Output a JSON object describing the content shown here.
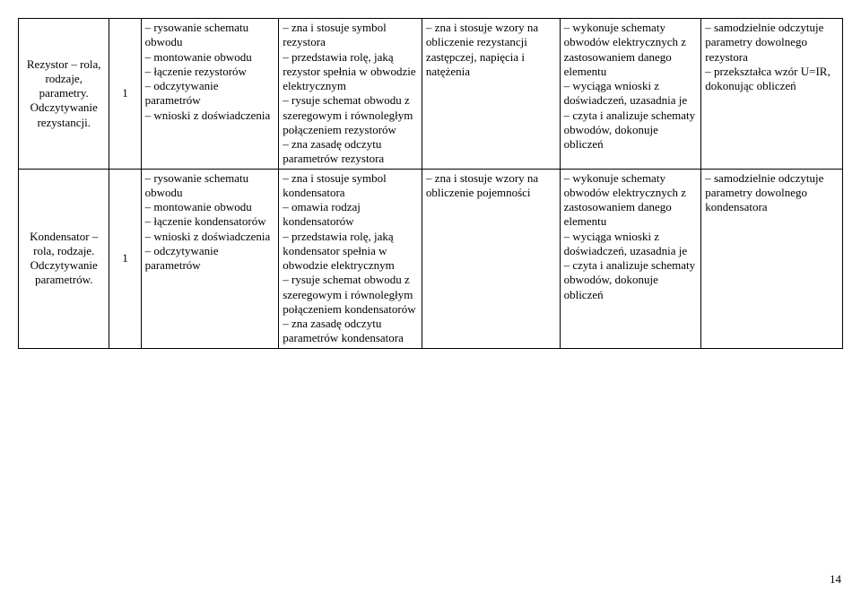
{
  "page_number": "14",
  "rows": [
    {
      "topic": "Rezystor – rola, rodzaje, parametry. Odczytywanie rezystancji.",
      "hours": "1",
      "c3": "– rysowanie schematu obwodu\n– montowanie obwodu\n– łączenie rezystorów\n– odczytywanie parametrów\n– wnioski z doświadczenia",
      "c4": "– zna i stosuje symbol rezystora\n– przedstawia rolę, jaką rezystor spełnia w obwodzie elektrycznym\n– rysuje schemat obwodu z szeregowym i równoległym połączeniem rezystorów\n– zna zasadę odczytu parametrów rezystora",
      "c5": "– zna i stosuje wzory na obliczenie rezystancji zastępczej, napięcia i natężenia",
      "c6": "– wykonuje schematy obwodów elektrycznych z zastosowaniem danego elementu\n– wyciąga wnioski z doświadczeń, uzasadnia je\n– czyta i analizuje schematy obwodów, dokonuje obliczeń",
      "c7": "– samodzielnie odczytuje parametry dowolnego rezystora\n– przekształca wzór U=IR, dokonując obliczeń"
    },
    {
      "topic": "Kondensator – rola, rodzaje. Odczytywanie parametrów.",
      "hours": "1",
      "c3": "– rysowanie schematu obwodu\n– montowanie obwodu\n– łączenie kondensatorów\n– wnioski z doświadczenia\n– odczytywanie parametrów",
      "c4": "– zna i stosuje symbol kondensatora\n– omawia rodzaj kondensatorów\n– przedstawia rolę, jaką kondensator spełnia w obwodzie elektrycznym\n– rysuje schemat obwodu z szeregowym i równoległym połączeniem kondensatorów\n– zna zasadę odczytu parametrów kondensatora",
      "c5": "– zna i stosuje wzory na obliczenie pojemności",
      "c6": "– wykonuje schematy obwodów elektrycznych z zastosowaniem danego elementu\n– wyciąga wnioski z doświadczeń, uzasadnia je\n– czyta i analizuje schematy obwodów, dokonuje obliczeń",
      "c7": "– samodzielnie odczytuje parametry dowolnego kondensatora"
    }
  ]
}
